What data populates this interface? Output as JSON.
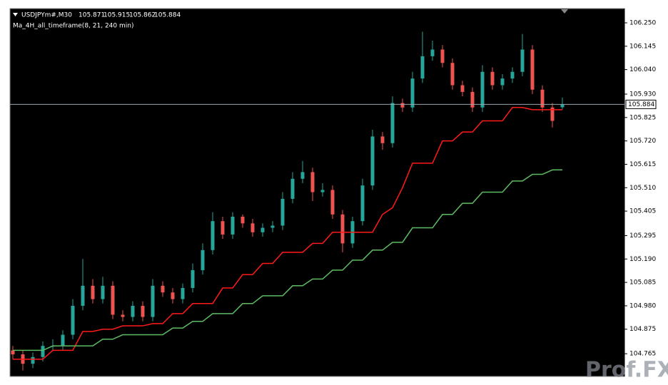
{
  "chart_data": {
    "type": "candlestick",
    "title": "USDJPYm#,M30",
    "subtitle": "Ma_4H_all_timeframe(8, 21, 240 min)",
    "watermark": "Prof.FX",
    "up_color": "#26a69a",
    "down_color": "#ef5350",
    "background": "#000000",
    "open": [
      104.78,
      104.762,
      104.72,
      104.75,
      104.8,
      104.8,
      104.85,
      104.98,
      105.07,
      105.01,
      105.07,
      104.94,
      104.93,
      104.98,
      104.93,
      105.07,
      105.04,
      105.01,
      105.06,
      105.14,
      105.23,
      105.36,
      105.3,
      105.38,
      105.35,
      105.31,
      105.33,
      105.34,
      105.46,
      105.55,
      105.58,
      105.49,
      105.5,
      105.39,
      105.26,
      105.36,
      105.52,
      105.74,
      105.71,
      105.89,
      105.87,
      106.0,
      106.1,
      106.13,
      106.07,
      105.97,
      105.94,
      105.87,
      106.03,
      105.97,
      106.0,
      106.03,
      106.13,
      105.95,
      105.87,
      105.871
    ],
    "high": [
      104.8,
      104.78,
      104.77,
      104.82,
      104.83,
      104.87,
      105.01,
      105.19,
      105.1,
      105.11,
      105.09,
      104.96,
      105.0,
      105.0,
      105.1,
      105.09,
      105.06,
      105.08,
      105.17,
      105.26,
      105.4,
      105.38,
      105.4,
      105.39,
      105.37,
      105.35,
      105.36,
      105.49,
      105.58,
      105.63,
      105.6,
      105.53,
      105.52,
      105.41,
      105.38,
      105.55,
      105.77,
      105.76,
      105.92,
      105.91,
      106.03,
      106.21,
      106.17,
      106.15,
      106.09,
      105.99,
      105.96,
      106.06,
      106.05,
      106.02,
      106.05,
      106.2,
      106.15,
      105.97,
      105.89,
      105.915
    ],
    "low": [
      104.74,
      104.69,
      104.7,
      104.73,
      104.78,
      104.78,
      104.83,
      104.96,
      104.99,
      104.99,
      104.92,
      104.91,
      104.91,
      104.91,
      104.91,
      105.02,
      104.99,
      104.99,
      105.04,
      105.12,
      105.21,
      105.28,
      105.28,
      105.33,
      105.29,
      105.29,
      105.31,
      105.32,
      105.44,
      105.53,
      105.45,
      105.47,
      105.37,
      105.22,
      105.24,
      105.34,
      105.5,
      105.68,
      105.69,
      105.85,
      105.85,
      105.98,
      106.08,
      106.05,
      105.95,
      105.92,
      105.85,
      105.85,
      105.95,
      105.95,
      105.98,
      106.01,
      105.93,
      105.85,
      105.78,
      105.862
    ],
    "close": [
      104.762,
      104.72,
      104.75,
      104.8,
      104.8,
      104.85,
      104.98,
      105.07,
      105.01,
      105.07,
      104.94,
      104.93,
      104.98,
      104.93,
      105.07,
      105.04,
      105.01,
      105.06,
      105.14,
      105.23,
      105.36,
      105.3,
      105.38,
      105.35,
      105.31,
      105.33,
      105.34,
      105.46,
      105.55,
      105.58,
      105.49,
      105.5,
      105.39,
      105.26,
      105.36,
      105.52,
      105.74,
      105.71,
      105.89,
      105.87,
      106.0,
      106.1,
      106.13,
      106.07,
      105.97,
      105.94,
      105.87,
      106.03,
      105.97,
      106.0,
      106.03,
      106.13,
      105.95,
      105.87,
      105.81,
      105.884
    ],
    "series": [
      {
        "color": "#ff1a1a",
        "values": [
          104.74,
          104.74,
          104.74,
          104.74,
          104.78,
          104.78,
          104.78,
          104.865,
          104.865,
          104.875,
          104.875,
          104.89,
          104.89,
          104.89,
          104.9,
          104.9,
          104.945,
          104.945,
          104.99,
          104.99,
          104.99,
          105.06,
          105.06,
          105.12,
          105.12,
          105.17,
          105.17,
          105.22,
          105.22,
          105.22,
          105.26,
          105.26,
          105.31,
          105.31,
          105.31,
          105.31,
          105.31,
          105.39,
          105.42,
          105.51,
          105.62,
          105.62,
          105.62,
          105.72,
          105.72,
          105.76,
          105.76,
          105.81,
          105.81,
          105.81,
          105.87,
          105.87,
          105.86,
          105.86,
          105.86,
          105.86
        ]
      },
      {
        "color": "#5dbb63",
        "values": [
          104.78,
          104.78,
          104.78,
          104.78,
          104.8,
          104.8,
          104.8,
          104.8,
          104.8,
          104.83,
          104.83,
          104.85,
          104.85,
          104.85,
          104.85,
          104.85,
          104.88,
          104.88,
          104.91,
          104.91,
          104.945,
          104.945,
          104.945,
          104.99,
          104.99,
          105.025,
          105.025,
          105.025,
          105.07,
          105.07,
          105.1,
          105.1,
          105.14,
          105.14,
          105.185,
          105.185,
          105.23,
          105.23,
          105.265,
          105.265,
          105.33,
          105.33,
          105.33,
          105.39,
          105.39,
          105.44,
          105.44,
          105.49,
          105.49,
          105.49,
          105.54,
          105.54,
          105.57,
          105.57,
          105.59,
          105.59
        ]
      }
    ],
    "ylim": [
      104.663,
      106.314
    ],
    "yticks": [
      {
        "value": 106.25,
        "label": "106.250"
      },
      {
        "value": 106.145,
        "label": "106.145"
      },
      {
        "value": 106.04,
        "label": "106.040"
      },
      {
        "value": 105.93,
        "label": "105.930"
      },
      {
        "value": 105.825,
        "label": "105.825"
      },
      {
        "value": 105.72,
        "label": "105.720"
      },
      {
        "value": 105.615,
        "label": "105.615"
      },
      {
        "value": 105.51,
        "label": "105.510"
      },
      {
        "value": 105.405,
        "label": "105.405"
      },
      {
        "value": 105.295,
        "label": "105.295"
      },
      {
        "value": 105.19,
        "label": "105.190"
      },
      {
        "value": 105.085,
        "label": "105.085"
      },
      {
        "value": 104.98,
        "label": "104.980"
      },
      {
        "value": 104.875,
        "label": "104.875"
      },
      {
        "value": 104.765,
        "label": "104.765"
      }
    ],
    "grid": false
  }
}
